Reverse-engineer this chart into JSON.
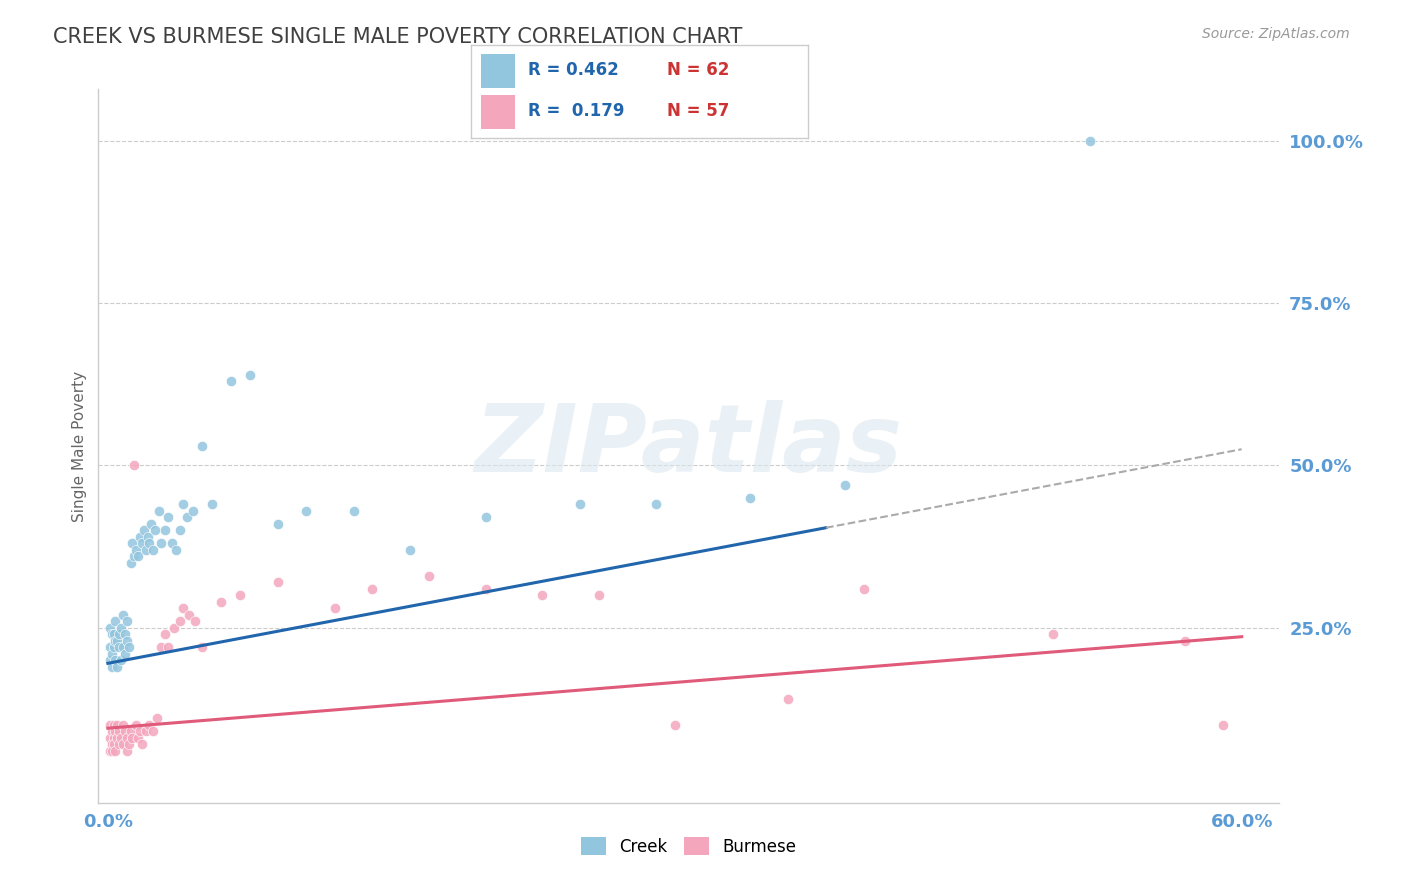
{
  "title": "CREEK VS BURMESE SINGLE MALE POVERTY CORRELATION CHART",
  "source": "Source: ZipAtlas.com",
  "ylabel": "Single Male Poverty",
  "xlim": [
    -0.005,
    0.62
  ],
  "ylim": [
    -0.02,
    1.08
  ],
  "xticks": [
    0.0,
    0.6
  ],
  "xticklabels": [
    "0.0%",
    "60.0%"
  ],
  "yticks": [
    0.0,
    0.25,
    0.5,
    0.75,
    1.0
  ],
  "yticklabels": [
    "",
    "25.0%",
    "50.0%",
    "75.0%",
    "100.0%"
  ],
  "creek_color": "#92c5de",
  "burmese_color": "#f4a6bd",
  "creek_line_color": "#2166ac",
  "burmese_line_color": "#e05a7a",
  "creek_label": "Creek",
  "burmese_label": "Burmese",
  "creek_R": 0.462,
  "creek_N": 62,
  "burmese_R": 0.179,
  "burmese_N": 57,
  "watermark": "ZIPatlas",
  "background_color": "#ffffff",
  "grid_color": "#cccccc",
  "title_color": "#404040",
  "axis_label_color": "#5b9bd5",
  "creek_line_intercept": 0.195,
  "creek_line_slope": 0.55,
  "creek_line_solid_end": 0.38,
  "burmese_line_intercept": 0.095,
  "burmese_line_slope": 0.235,
  "creek_points_x": [
    0.001,
    0.001,
    0.001,
    0.002,
    0.002,
    0.002,
    0.003,
    0.003,
    0.004,
    0.004,
    0.004,
    0.005,
    0.005,
    0.006,
    0.006,
    0.007,
    0.007,
    0.008,
    0.008,
    0.009,
    0.009,
    0.01,
    0.01,
    0.011,
    0.012,
    0.013,
    0.014,
    0.015,
    0.016,
    0.017,
    0.018,
    0.019,
    0.02,
    0.021,
    0.022,
    0.023,
    0.024,
    0.025,
    0.027,
    0.028,
    0.03,
    0.032,
    0.034,
    0.036,
    0.038,
    0.04,
    0.042,
    0.045,
    0.05,
    0.055,
    0.065,
    0.075,
    0.09,
    0.105,
    0.13,
    0.16,
    0.2,
    0.25,
    0.29,
    0.34,
    0.39,
    0.52
  ],
  "creek_points_y": [
    0.2,
    0.22,
    0.25,
    0.19,
    0.24,
    0.21,
    0.22,
    0.24,
    0.2,
    0.23,
    0.26,
    0.19,
    0.23,
    0.22,
    0.24,
    0.2,
    0.25,
    0.22,
    0.27,
    0.21,
    0.24,
    0.23,
    0.26,
    0.22,
    0.35,
    0.38,
    0.36,
    0.37,
    0.36,
    0.39,
    0.38,
    0.4,
    0.37,
    0.39,
    0.38,
    0.41,
    0.37,
    0.4,
    0.43,
    0.38,
    0.4,
    0.42,
    0.38,
    0.37,
    0.4,
    0.44,
    0.42,
    0.43,
    0.53,
    0.44,
    0.63,
    0.64,
    0.41,
    0.43,
    0.43,
    0.37,
    0.42,
    0.44,
    0.44,
    0.45,
    0.47,
    1.0
  ],
  "burmese_points_x": [
    0.001,
    0.001,
    0.001,
    0.002,
    0.002,
    0.002,
    0.003,
    0.003,
    0.003,
    0.004,
    0.004,
    0.005,
    0.005,
    0.006,
    0.006,
    0.007,
    0.008,
    0.008,
    0.009,
    0.01,
    0.01,
    0.011,
    0.012,
    0.013,
    0.014,
    0.015,
    0.016,
    0.017,
    0.018,
    0.02,
    0.022,
    0.024,
    0.026,
    0.028,
    0.03,
    0.032,
    0.035,
    0.038,
    0.04,
    0.043,
    0.046,
    0.05,
    0.06,
    0.07,
    0.09,
    0.12,
    0.14,
    0.17,
    0.2,
    0.23,
    0.26,
    0.3,
    0.36,
    0.4,
    0.5,
    0.57,
    0.59
  ],
  "burmese_points_y": [
    0.06,
    0.08,
    0.1,
    0.07,
    0.09,
    0.06,
    0.08,
    0.1,
    0.07,
    0.09,
    0.06,
    0.08,
    0.1,
    0.07,
    0.09,
    0.08,
    0.07,
    0.1,
    0.09,
    0.06,
    0.08,
    0.07,
    0.09,
    0.08,
    0.5,
    0.1,
    0.08,
    0.09,
    0.07,
    0.09,
    0.1,
    0.09,
    0.11,
    0.22,
    0.24,
    0.22,
    0.25,
    0.26,
    0.28,
    0.27,
    0.26,
    0.22,
    0.29,
    0.3,
    0.32,
    0.28,
    0.31,
    0.33,
    0.31,
    0.3,
    0.3,
    0.1,
    0.14,
    0.31,
    0.24,
    0.23,
    0.1
  ]
}
